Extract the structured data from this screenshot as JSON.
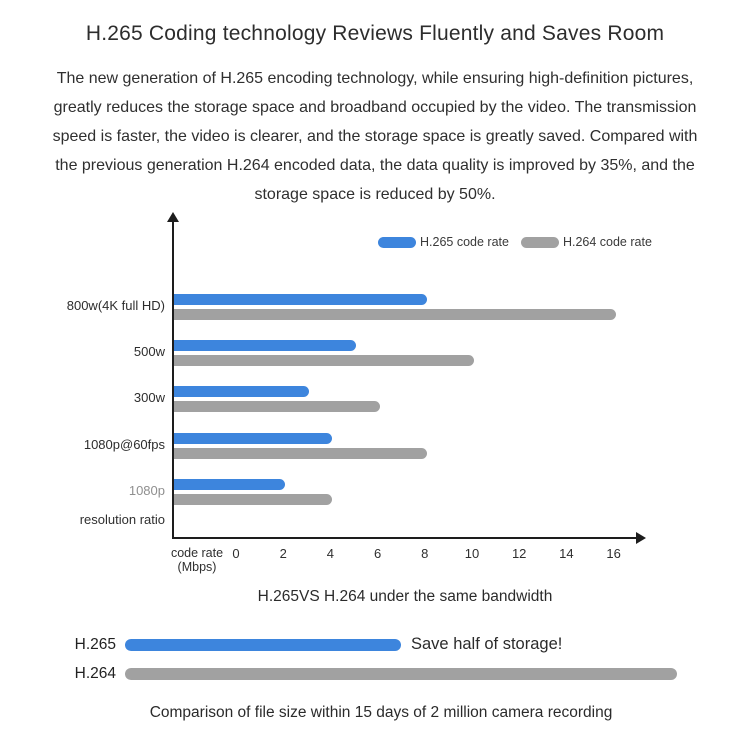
{
  "title": "H.265 Coding technology Reviews Fluently and Saves Room",
  "intro_paragraph": "The new generation of H.265 encoding technology, while ensuring high-definition pictures, greatly reduces the storage space and broadband occupied by the video. The transmission speed is faster, the video is clearer, and the storage space is greatly saved. Compared with the previous generation H.264 encoded data, the data quality is improved by 35%, and the storage space is reduced by 50%.",
  "colors": {
    "h265_blue": "#3d85dd",
    "h264_gray": "#a1a1a1",
    "axis_black": "#1d1d1d",
    "text_dark": "#2d2d2d",
    "muted_category": "#8f8f8f"
  },
  "chart_data": [
    {
      "type": "bar",
      "orientation": "horizontal",
      "caption": "H.265VS H.264 under the same bandwidth",
      "categories": [
        "800w(4K full HD)",
        "500w",
        "300w",
        "1080p@60fps",
        "1080p"
      ],
      "category_colors": [
        "#2d2d2d",
        "#2d2d2d",
        "#2d2d2d",
        "#2d2d2d",
        "#8f8f8f"
      ],
      "series": [
        {
          "name": "H.265 code rate",
          "color": "#3d85dd",
          "values": [
            8,
            5,
            3,
            4,
            2
          ]
        },
        {
          "name": "H.264 code rate",
          "color": "#a1a1a1",
          "values": [
            16,
            10,
            6,
            8,
            4
          ]
        }
      ],
      "x_axis_title_line1": "code rate",
      "x_axis_title_line2": "(Mbps)",
      "x_ticks": [
        0,
        2,
        4,
        6,
        8,
        10,
        12,
        14,
        16
      ],
      "xlim": [
        0,
        16
      ],
      "y_axis_bottom_label": "resolution ratio",
      "legend_position": "top-right",
      "grid": false
    },
    {
      "type": "bar",
      "orientation": "horizontal",
      "caption": "Comparison of file size within 15 days of 2 million camera recording",
      "rows": [
        {
          "label": "H.265",
          "relative_size": 1,
          "color": "#3d85dd",
          "annotation": "Save half of storage!"
        },
        {
          "label": "H.264",
          "relative_size": 2,
          "color": "#a1a1a1",
          "annotation": ""
        }
      ]
    }
  ]
}
